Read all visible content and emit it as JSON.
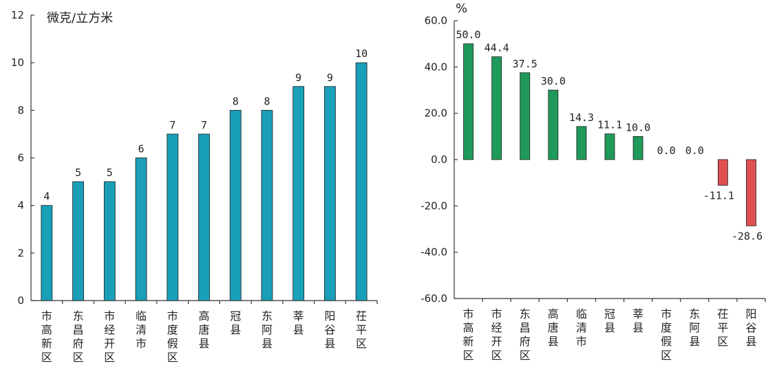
{
  "chart_data": [
    {
      "type": "bar",
      "unit": "微克/立方米",
      "categories": [
        "市高新区",
        "东昌府区",
        "市经开区",
        "临清市",
        "市度假区",
        "高唐县",
        "冠县",
        "东阿县",
        "莘县",
        "阳谷县",
        "茌平区"
      ],
      "values": [
        4,
        5,
        5,
        6,
        7,
        7,
        8,
        8,
        9,
        9,
        10
      ],
      "data_labels": [
        "4",
        "5",
        "5",
        "6",
        "7",
        "7",
        "8",
        "8",
        "9",
        "9",
        "10"
      ],
      "ylim": [
        0,
        12
      ],
      "yticks": [
        "0",
        "2",
        "4",
        "6",
        "8",
        "10",
        "12"
      ],
      "bar_color": "#1a9fb8",
      "grid": false
    },
    {
      "type": "bar",
      "unit": "%",
      "categories": [
        "市高新区",
        "市经开区",
        "东昌府区",
        "高唐县",
        "临清市",
        "冠县",
        "莘县",
        "市度假区",
        "东阿县",
        "茌平区",
        "阳谷县"
      ],
      "values": [
        50.0,
        44.4,
        37.5,
        30.0,
        14.3,
        11.1,
        10.0,
        0.0,
        0.0,
        -11.1,
        -28.6
      ],
      "data_labels": [
        "50.0",
        "44.4",
        "37.5",
        "30.0",
        "14.3",
        "11.1",
        "10.0",
        "0.0",
        "0.0",
        "-11.1",
        "-28.6"
      ],
      "ylim": [
        -60,
        60
      ],
      "yticks": [
        "-60.0",
        "-40.0",
        "-20.0",
        "0.0",
        "20.0",
        "40.0",
        "60.0"
      ],
      "positive_color": "#1f9a5a",
      "negative_color": "#e05050",
      "grid": false
    }
  ]
}
